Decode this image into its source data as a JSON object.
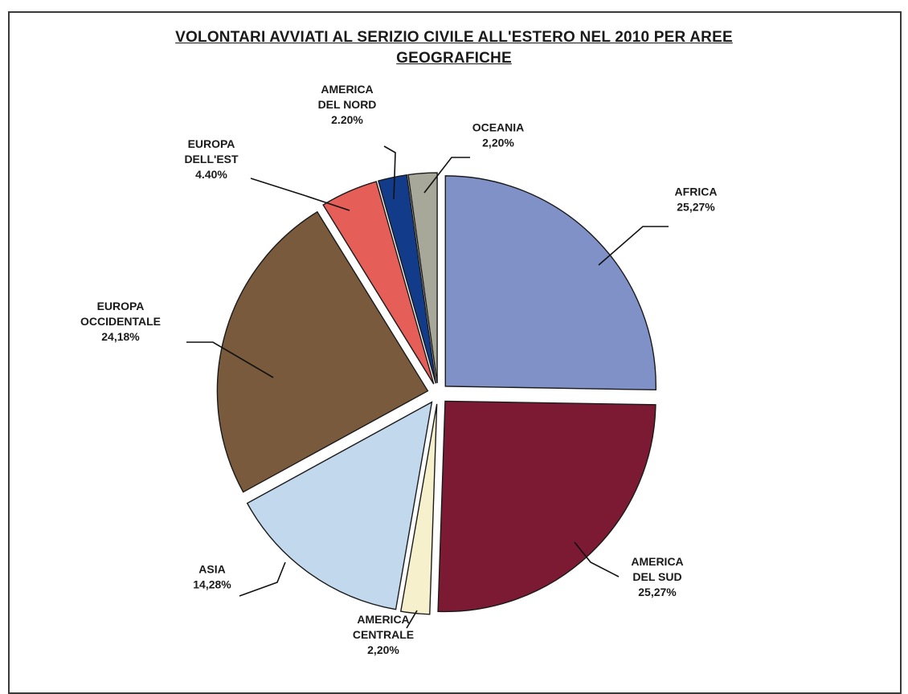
{
  "chart_data": {
    "type": "pie",
    "title_lines": [
      "VOLONTARI AVVIATI AL SERIZIO CIVILE ALL'ESTERO NEL 2010 PER AREE",
      "GEOGRAFICHE"
    ],
    "slices": [
      {
        "name": "AFRICA",
        "label_lines": [
          "AFRICA"
        ],
        "value_label": "25,27%",
        "value": 25.27,
        "color": "#8091c8",
        "exploded": true
      },
      {
        "name": "AMERICA DEL SUD",
        "label_lines": [
          "AMERICA",
          "DEL SUD"
        ],
        "value_label": "25,27%",
        "value": 25.27,
        "color": "#7b1a32",
        "exploded": true
      },
      {
        "name": "AMERICA CENTRALE",
        "label_lines": [
          "AMERICA",
          "CENTRALE"
        ],
        "value_label": "2,20%",
        "value": 2.2,
        "color": "#f6f0cc",
        "exploded": true
      },
      {
        "name": "ASIA",
        "label_lines": [
          "ASIA"
        ],
        "value_label": "14,28%",
        "value": 14.28,
        "color": "#c2d8ec",
        "exploded": true
      },
      {
        "name": "EUROPA OCCIDENTALE",
        "label_lines": [
          "EUROPA",
          "OCCIDENTALE"
        ],
        "value_label": "24,18%",
        "value": 24.18,
        "color": "#7a5a3c",
        "exploded": true
      },
      {
        "name": "EUROPA DELL'EST",
        "label_lines": [
          "EUROPA",
          "DELL'EST"
        ],
        "value_label": "4.40%",
        "value": 4.4,
        "color": "#e55e58",
        "exploded": true
      },
      {
        "name": "AMERICA DEL NORD",
        "label_lines": [
          "AMERICA",
          "DEL NORD"
        ],
        "value_label": "2.20%",
        "value": 2.2,
        "color": "#123c8a",
        "exploded": true
      },
      {
        "name": "OCEANIA",
        "label_lines": [
          "OCEANIA"
        ],
        "value_label": "2,20%",
        "value": 2.2,
        "color": "#a8a89a",
        "exploded": true
      }
    ],
    "legend": "none",
    "start_angle": "12 o'clock",
    "direction": "clockwise"
  }
}
